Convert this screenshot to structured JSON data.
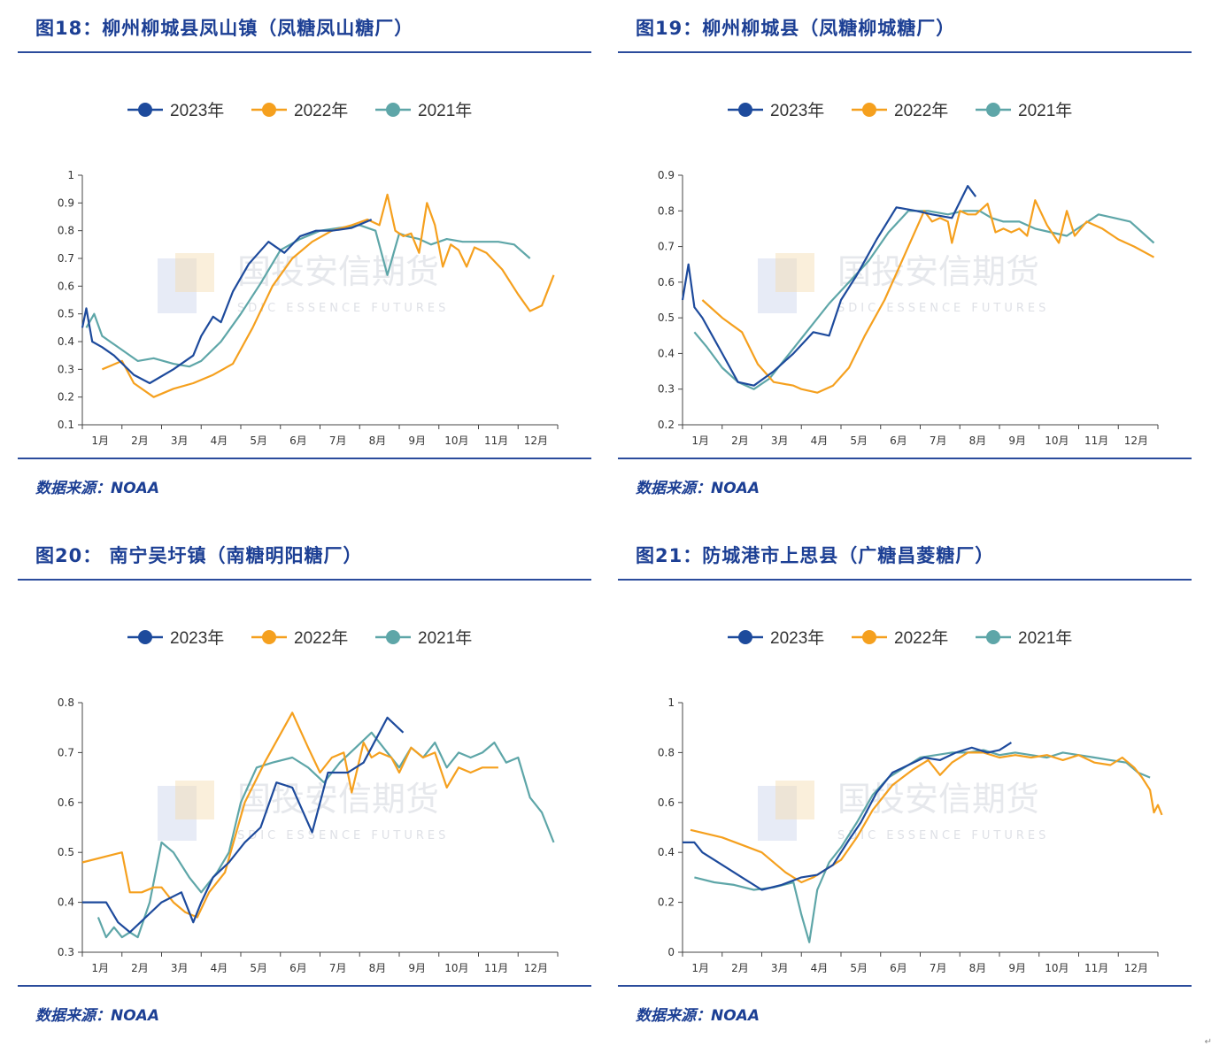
{
  "watermark": {
    "cn": "国投安信期货",
    "en": "SDIC ESSENCE FUTURES"
  },
  "colors": {
    "title": "#1c3f94",
    "rule": "#2b4c9c",
    "s2023": "#1d4a9c",
    "s2022": "#f5a01e",
    "s2021": "#5ea6a8"
  },
  "months": [
    "1月",
    "2月",
    "3月",
    "4月",
    "5月",
    "6月",
    "7月",
    "8月",
    "9月",
    "10月",
    "11月",
    "12月"
  ],
  "charts": [
    {
      "title": "图18：柳州柳城县凤山镇（凤糖凤山糖厂）",
      "source": "数据来源：NOAA",
      "chart_data": {
        "type": "line",
        "ylim": [
          0.1,
          1.0
        ],
        "yticks": [
          "1",
          "0.9",
          "0.8",
          "0.7",
          "0.6",
          "0.5",
          "0.4",
          "0.3",
          "0.2",
          "0.1"
        ],
        "ytick_values": [
          1.0,
          0.9,
          0.8,
          0.7,
          0.6,
          0.5,
          0.4,
          0.3,
          0.2,
          0.1
        ],
        "series": [
          {
            "name": "2023年",
            "color": "#1d4a9c",
            "x": [
              1.0,
              1.1,
              1.15,
              1.25,
              1.5,
              1.8,
              2.3,
              2.7,
              3.3,
              3.8,
              4.0,
              4.3,
              4.5,
              4.8,
              5.2,
              5.7,
              6.1,
              6.5,
              6.9,
              7.3,
              7.8,
              8.3
            ],
            "y": [
              0.45,
              0.52,
              0.48,
              0.4,
              0.38,
              0.35,
              0.28,
              0.25,
              0.3,
              0.35,
              0.42,
              0.49,
              0.47,
              0.58,
              0.68,
              0.76,
              0.72,
              0.78,
              0.8,
              0.8,
              0.81,
              0.84
            ]
          },
          {
            "name": "2022年",
            "color": "#f5a01e",
            "x": [
              1.5,
              2.0,
              2.3,
              2.8,
              3.3,
              3.8,
              4.3,
              4.8,
              5.3,
              5.8,
              6.3,
              6.8,
              7.3,
              7.8,
              8.2,
              8.5,
              8.7,
              8.9,
              9.1,
              9.3,
              9.5,
              9.7,
              9.9,
              10.1,
              10.3,
              10.5,
              10.7,
              10.9,
              11.2,
              11.6,
              12.0,
              12.3,
              12.6,
              12.9
            ],
            "y": [
              0.3,
              0.33,
              0.25,
              0.2,
              0.23,
              0.25,
              0.28,
              0.32,
              0.45,
              0.6,
              0.7,
              0.76,
              0.8,
              0.82,
              0.84,
              0.82,
              0.93,
              0.8,
              0.78,
              0.79,
              0.72,
              0.9,
              0.82,
              0.67,
              0.75,
              0.73,
              0.67,
              0.74,
              0.72,
              0.66,
              0.57,
              0.51,
              0.53,
              0.64
            ]
          },
          {
            "name": "2021年",
            "color": "#5ea6a8",
            "x": [
              1.1,
              1.3,
              1.5,
              2.0,
              2.4,
              2.8,
              3.3,
              3.7,
              4.0,
              4.5,
              5.0,
              5.5,
              6.0,
              6.5,
              7.0,
              7.5,
              8.0,
              8.4,
              8.7,
              9.0,
              9.2,
              9.5,
              9.8,
              10.2,
              10.6,
              11.0,
              11.5,
              11.9,
              12.3
            ],
            "y": [
              0.45,
              0.5,
              0.42,
              0.37,
              0.33,
              0.34,
              0.32,
              0.31,
              0.33,
              0.4,
              0.5,
              0.61,
              0.73,
              0.77,
              0.8,
              0.81,
              0.82,
              0.8,
              0.64,
              0.79,
              0.78,
              0.77,
              0.75,
              0.77,
              0.76,
              0.76,
              0.76,
              0.75,
              0.7
            ]
          }
        ]
      }
    },
    {
      "title": "图19：柳州柳城县（凤糖柳城糖厂）",
      "source": "数据来源：NOAA",
      "chart_data": {
        "type": "line",
        "ylim": [
          0.2,
          0.9
        ],
        "yticks": [
          "0.9",
          "0.8",
          "0.7",
          "0.6",
          "0.5",
          "0.4",
          "0.3",
          "0.2"
        ],
        "ytick_values": [
          0.9,
          0.8,
          0.7,
          0.6,
          0.5,
          0.4,
          0.3,
          0.2
        ],
        "series": [
          {
            "name": "2023年",
            "color": "#1d4a9c",
            "x": [
              1.0,
              1.15,
              1.3,
              1.5,
              2.0,
              2.4,
              2.8,
              3.3,
              3.8,
              4.3,
              4.7,
              5.0,
              5.4,
              5.9,
              6.4,
              6.9,
              7.3,
              7.8,
              8.2,
              8.4
            ],
            "y": [
              0.55,
              0.65,
              0.53,
              0.5,
              0.4,
              0.32,
              0.31,
              0.35,
              0.4,
              0.46,
              0.45,
              0.55,
              0.62,
              0.72,
              0.81,
              0.8,
              0.79,
              0.78,
              0.87,
              0.84
            ]
          },
          {
            "name": "2022年",
            "color": "#f5a01e",
            "x": [
              1.5,
              2.0,
              2.5,
              2.9,
              3.3,
              3.8,
              4.0,
              4.4,
              4.8,
              5.2,
              5.6,
              6.1,
              6.7,
              7.1,
              7.3,
              7.5,
              7.7,
              7.8,
              8.0,
              8.2,
              8.4,
              8.7,
              8.9,
              9.1,
              9.3,
              9.5,
              9.7,
              9.9,
              10.2,
              10.5,
              10.7,
              10.9,
              11.2,
              11.6,
              12.0,
              12.4,
              12.9
            ],
            "y": [
              0.55,
              0.5,
              0.46,
              0.37,
              0.32,
              0.31,
              0.3,
              0.29,
              0.31,
              0.36,
              0.45,
              0.55,
              0.7,
              0.8,
              0.77,
              0.78,
              0.77,
              0.71,
              0.8,
              0.79,
              0.79,
              0.82,
              0.74,
              0.75,
              0.74,
              0.75,
              0.73,
              0.83,
              0.76,
              0.71,
              0.8,
              0.73,
              0.77,
              0.75,
              0.72,
              0.7,
              0.67
            ]
          },
          {
            "name": "2021年",
            "color": "#5ea6a8",
            "x": [
              1.3,
              1.6,
              2.0,
              2.4,
              2.8,
              3.2,
              3.7,
              4.2,
              4.7,
              5.2,
              5.7,
              6.2,
              6.7,
              7.2,
              7.7,
              8.1,
              8.5,
              8.8,
              9.1,
              9.5,
              9.9,
              10.3,
              10.7,
              11.1,
              11.5,
              11.9,
              12.3,
              12.6,
              12.9
            ],
            "y": [
              0.46,
              0.42,
              0.36,
              0.32,
              0.3,
              0.33,
              0.4,
              0.47,
              0.54,
              0.6,
              0.66,
              0.74,
              0.8,
              0.8,
              0.79,
              0.8,
              0.8,
              0.78,
              0.77,
              0.77,
              0.75,
              0.74,
              0.73,
              0.76,
              0.79,
              0.78,
              0.77,
              0.74,
              0.71
            ]
          }
        ]
      }
    },
    {
      "title": "图20：  南宁吴圩镇（南糖明阳糖厂）",
      "source": "数据来源：NOAA",
      "chart_data": {
        "type": "line",
        "ylim": [
          0.3,
          0.8
        ],
        "yticks": [
          "0.8",
          "0.7",
          "0.6",
          "0.5",
          "0.4",
          "0.3"
        ],
        "ytick_values": [
          0.8,
          0.7,
          0.6,
          0.5,
          0.4,
          0.3
        ],
        "series": [
          {
            "name": "2023年",
            "color": "#1d4a9c",
            "x": [
              1.0,
              1.6,
              1.9,
              2.2,
              2.6,
              3.0,
              3.5,
              3.8,
              4.0,
              4.3,
              4.7,
              5.1,
              5.5,
              5.9,
              6.3,
              6.8,
              7.2,
              7.7,
              8.1,
              8.7,
              9.1
            ],
            "y": [
              0.4,
              0.4,
              0.36,
              0.34,
              0.37,
              0.4,
              0.42,
              0.36,
              0.4,
              0.45,
              0.48,
              0.52,
              0.55,
              0.64,
              0.63,
              0.54,
              0.66,
              0.66,
              0.68,
              0.77,
              0.74
            ]
          },
          {
            "name": "2022年",
            "color": "#f5a01e",
            "x": [
              1.0,
              2.0,
              2.2,
              2.5,
              2.8,
              3.0,
              3.3,
              3.6,
              3.9,
              4.2,
              4.6,
              5.1,
              5.6,
              6.3,
              6.7,
              7.0,
              7.3,
              7.6,
              7.8,
              8.1,
              8.3,
              8.5,
              8.8,
              9.0,
              9.3,
              9.6,
              9.9,
              10.2,
              10.5,
              10.8,
              11.1,
              11.5
            ],
            "y": [
              0.48,
              0.5,
              0.42,
              0.42,
              0.43,
              0.43,
              0.4,
              0.38,
              0.37,
              0.42,
              0.46,
              0.6,
              0.68,
              0.78,
              0.71,
              0.66,
              0.69,
              0.7,
              0.62,
              0.72,
              0.69,
              0.7,
              0.69,
              0.66,
              0.71,
              0.69,
              0.7,
              0.63,
              0.67,
              0.66,
              0.67,
              0.67
            ]
          },
          {
            "name": "2021年",
            "color": "#5ea6a8",
            "x": [
              1.4,
              1.6,
              1.8,
              2.0,
              2.2,
              2.4,
              2.7,
              3.0,
              3.3,
              3.7,
              4.0,
              4.4,
              4.7,
              5.0,
              5.4,
              5.8,
              6.3,
              6.7,
              7.1,
              7.5,
              7.9,
              8.3,
              8.7,
              9.0,
              9.3,
              9.6,
              9.9,
              10.2,
              10.5,
              10.8,
              11.1,
              11.4,
              11.7,
              12.0,
              12.3,
              12.6,
              12.9
            ],
            "y": [
              0.37,
              0.33,
              0.35,
              0.33,
              0.34,
              0.33,
              0.4,
              0.52,
              0.5,
              0.45,
              0.42,
              0.46,
              0.5,
              0.6,
              0.67,
              0.68,
              0.69,
              0.67,
              0.64,
              0.68,
              0.71,
              0.74,
              0.7,
              0.67,
              0.71,
              0.69,
              0.72,
              0.67,
              0.7,
              0.69,
              0.7,
              0.72,
              0.68,
              0.69,
              0.61,
              0.58,
              0.52
            ]
          }
        ]
      }
    },
    {
      "title": "图21：防城港市上思县（广糖昌菱糖厂）",
      "source": "数据来源：NOAA",
      "chart_data": {
        "type": "line",
        "ylim": [
          0,
          1.0
        ],
        "yticks": [
          "1",
          "0.8",
          "0.6",
          "0.4",
          "0.2",
          "0"
        ],
        "ytick_values": [
          1.0,
          0.8,
          0.6,
          0.4,
          0.2,
          0
        ],
        "series": [
          {
            "name": "2023年",
            "color": "#1d4a9c",
            "x": [
              1.0,
              1.3,
              1.5,
              2.0,
              2.5,
              3.0,
              3.5,
              4.0,
              4.4,
              4.8,
              5.2,
              5.5,
              5.9,
              6.3,
              6.7,
              7.1,
              7.5,
              7.9,
              8.3,
              8.7,
              9.0,
              9.3
            ],
            "y": [
              0.44,
              0.44,
              0.4,
              0.35,
              0.3,
              0.25,
              0.27,
              0.3,
              0.31,
              0.35,
              0.45,
              0.52,
              0.64,
              0.72,
              0.75,
              0.78,
              0.77,
              0.8,
              0.82,
              0.8,
              0.81,
              0.84
            ]
          },
          {
            "name": "2022年",
            "color": "#f5a01e",
            "x": [
              1.2,
              2.0,
              2.5,
              3.0,
              3.6,
              4.0,
              4.3,
              4.6,
              5.0,
              5.4,
              5.8,
              6.3,
              6.8,
              7.2,
              7.5,
              7.8,
              8.2,
              8.6,
              9.0,
              9.4,
              9.8,
              10.2,
              10.6,
              11.0,
              11.4,
              11.8,
              12.1,
              12.4,
              12.6,
              12.8,
              12.9,
              13.0,
              13.1
            ],
            "y": [
              0.49,
              0.46,
              0.43,
              0.4,
              0.32,
              0.28,
              0.3,
              0.33,
              0.37,
              0.46,
              0.57,
              0.67,
              0.73,
              0.77,
              0.71,
              0.76,
              0.8,
              0.8,
              0.78,
              0.79,
              0.78,
              0.79,
              0.77,
              0.79,
              0.76,
              0.75,
              0.78,
              0.74,
              0.7,
              0.65,
              0.56,
              0.59,
              0.55
            ]
          },
          {
            "name": "2021年",
            "color": "#5ea6a8",
            "x": [
              1.3,
              1.8,
              2.3,
              2.8,
              3.3,
              3.8,
              4.0,
              4.2,
              4.4,
              4.7,
              5.0,
              5.4,
              5.8,
              6.2,
              6.6,
              7.0,
              7.4,
              7.8,
              8.2,
              8.6,
              9.0,
              9.4,
              9.8,
              10.2,
              10.6,
              11.0,
              11.4,
              11.8,
              12.2,
              12.5,
              12.8
            ],
            "y": [
              0.3,
              0.28,
              0.27,
              0.25,
              0.26,
              0.28,
              0.15,
              0.04,
              0.25,
              0.36,
              0.42,
              0.52,
              0.63,
              0.7,
              0.74,
              0.78,
              0.79,
              0.8,
              0.8,
              0.81,
              0.79,
              0.8,
              0.79,
              0.78,
              0.8,
              0.79,
              0.78,
              0.77,
              0.76,
              0.72,
              0.7
            ]
          }
        ]
      }
    }
  ]
}
